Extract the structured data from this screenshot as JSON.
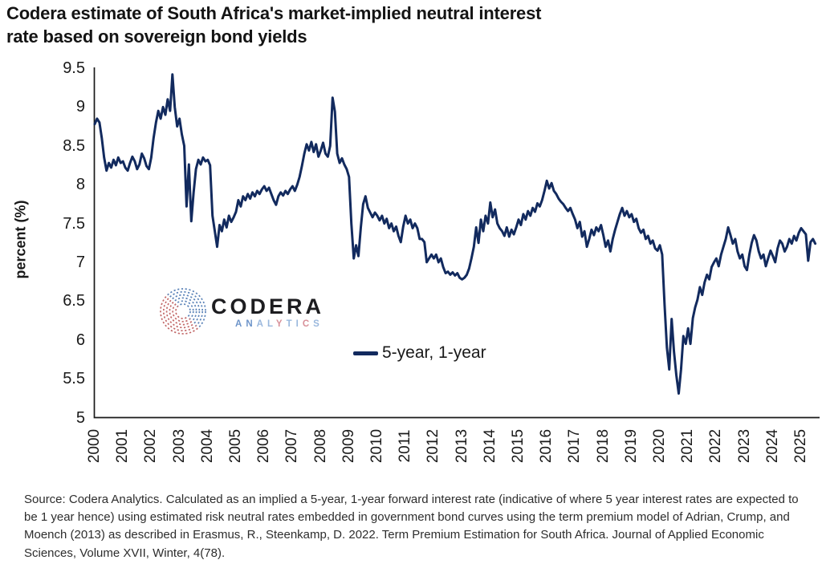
{
  "header": {
    "title_line1": "Codera estimate of South Africa's market-implied neutral interest",
    "title_line2": "rate based on sovereign bond yields"
  },
  "logo": {
    "name": "CODERA",
    "subtitle_letters": [
      {
        "ch": "A",
        "color": "#6d94c9"
      },
      {
        "ch": "N",
        "color": "#6d94c9"
      },
      {
        "ch": "A",
        "color": "#9ab8dd"
      },
      {
        "ch": "L",
        "color": "#9ab8dd"
      },
      {
        "ch": "Y",
        "color": "#d88f98"
      },
      {
        "ch": "T",
        "color": "#9ab8dd"
      },
      {
        "ch": "I",
        "color": "#9ab8dd"
      },
      {
        "ch": "C",
        "color": "#d88f98"
      },
      {
        "ch": "S",
        "color": "#9ab8dd"
      }
    ],
    "mark_color_top": "#5b83b8",
    "mark_color_bottom": "#c26868"
  },
  "chart_data": {
    "type": "line",
    "title": "Codera estimate of South Africa's market-implied neutral interest rate based on sovereign bond yields",
    "xlabel": "",
    "ylabel": "percent (%)",
    "ylim": [
      5,
      9.5
    ],
    "grid": false,
    "legend_position": "inside-center-bottom",
    "y_ticks": [
      5,
      5.5,
      6,
      6.5,
      7,
      7.5,
      8,
      8.5,
      9,
      9.5
    ],
    "y_tick_labels": [
      "5",
      "5.5",
      "6",
      "6.5",
      "7",
      "7.5",
      "8",
      "8.5",
      "9",
      "9.5"
    ],
    "x_ticks": [
      "2000",
      "2001",
      "2002",
      "2003",
      "2004",
      "2005",
      "2006",
      "2007",
      "2008",
      "2009",
      "2010",
      "2011",
      "2012",
      "2013",
      "2014",
      "2015",
      "2016",
      "2017",
      "2018",
      "2019",
      "2020",
      "2021",
      "2022",
      "2023",
      "2024",
      "2025"
    ],
    "series": [
      {
        "name": "5-year, 1-year",
        "color": "#122a5e",
        "start_year": 2000,
        "frequency": "monthly",
        "values": [
          8.78,
          8.85,
          8.8,
          8.6,
          8.35,
          8.18,
          8.28,
          8.22,
          8.32,
          8.25,
          8.35,
          8.28,
          8.3,
          8.22,
          8.18,
          8.28,
          8.36,
          8.3,
          8.2,
          8.26,
          8.4,
          8.34,
          8.24,
          8.2,
          8.35,
          8.6,
          8.8,
          8.95,
          8.85,
          9.0,
          8.9,
          9.1,
          8.95,
          9.42,
          9.0,
          8.75,
          8.85,
          8.65,
          8.5,
          7.72,
          8.26,
          7.53,
          7.9,
          8.2,
          8.32,
          8.26,
          8.35,
          8.3,
          8.32,
          8.25,
          7.6,
          7.4,
          7.2,
          7.48,
          7.4,
          7.55,
          7.45,
          7.6,
          7.52,
          7.58,
          7.65,
          7.8,
          7.72,
          7.85,
          7.8,
          7.88,
          7.82,
          7.9,
          7.85,
          7.92,
          7.88,
          7.94,
          7.98,
          7.92,
          7.96,
          7.88,
          7.8,
          7.74,
          7.85,
          7.9,
          7.86,
          7.92,
          7.88,
          7.94,
          7.98,
          7.92,
          8.0,
          8.1,
          8.24,
          8.4,
          8.52,
          8.44,
          8.55,
          8.42,
          8.52,
          8.36,
          8.44,
          8.54,
          8.4,
          8.36,
          8.5,
          9.12,
          8.94,
          8.4,
          8.28,
          8.34,
          8.26,
          8.2,
          8.1,
          7.5,
          7.05,
          7.22,
          7.08,
          7.45,
          7.75,
          7.85,
          7.7,
          7.64,
          7.58,
          7.64,
          7.6,
          7.54,
          7.6,
          7.5,
          7.56,
          7.44,
          7.5,
          7.4,
          7.46,
          7.34,
          7.26,
          7.46,
          7.6,
          7.5,
          7.55,
          7.44,
          7.5,
          7.44,
          7.3,
          7.3,
          7.26,
          7.0,
          7.05,
          7.1,
          7.05,
          7.1,
          7.0,
          7.05,
          6.94,
          6.86,
          6.88,
          6.84,
          6.87,
          6.83,
          6.86,
          6.8,
          6.78,
          6.8,
          6.84,
          6.92,
          7.05,
          7.2,
          7.45,
          7.25,
          7.55,
          7.4,
          7.6,
          7.5,
          7.77,
          7.58,
          7.68,
          7.5,
          7.44,
          7.4,
          7.34,
          7.45,
          7.33,
          7.42,
          7.36,
          7.45,
          7.55,
          7.48,
          7.62,
          7.55,
          7.66,
          7.6,
          7.7,
          7.65,
          7.76,
          7.72,
          7.8,
          7.92,
          8.05,
          7.95,
          8.02,
          7.92,
          7.88,
          7.82,
          7.78,
          7.75,
          7.7,
          7.66,
          7.7,
          7.62,
          7.55,
          7.44,
          7.52,
          7.33,
          7.4,
          7.2,
          7.3,
          7.42,
          7.35,
          7.45,
          7.4,
          7.48,
          7.35,
          7.2,
          7.28,
          7.14,
          7.3,
          7.42,
          7.52,
          7.62,
          7.7,
          7.6,
          7.66,
          7.58,
          7.62,
          7.52,
          7.56,
          7.44,
          7.38,
          7.42,
          7.3,
          7.34,
          7.24,
          7.28,
          7.18,
          7.15,
          7.22,
          7.1,
          6.45,
          5.9,
          5.62,
          6.27,
          5.85,
          5.55,
          5.31,
          5.62,
          6.05,
          5.95,
          6.15,
          5.95,
          6.28,
          6.42,
          6.52,
          6.68,
          6.58,
          6.74,
          6.84,
          6.78,
          6.94,
          7.0,
          7.05,
          6.95,
          7.1,
          7.2,
          7.3,
          7.45,
          7.35,
          7.24,
          7.3,
          7.14,
          7.05,
          7.1,
          6.95,
          6.9,
          7.1,
          7.25,
          7.35,
          7.28,
          7.14,
          7.05,
          7.1,
          6.95,
          7.05,
          7.15,
          7.08,
          7.0,
          7.18,
          7.28,
          7.24,
          7.14,
          7.2,
          7.3,
          7.24,
          7.34,
          7.28,
          7.38,
          7.44,
          7.4,
          7.36,
          7.02,
          7.26,
          7.3,
          7.24
        ]
      }
    ],
    "axis_color": "#1a1a1a"
  },
  "legend": {
    "label": "5-year, 1-year"
  },
  "footer": {
    "source_text": "Source: Codera Analytics. Calculated as an implied a 5-year, 1-year forward interest rate (indicative of where 5 year interest rates are expected to be 1 year hence) using estimated risk neutral rates embedded in government bond curves using the term premium model of Adrian, Crump, and Moench (2013) as described in Erasmus, R., Steenkamp, D. 2022. Term Premium Estimation for South Africa. Journal of Applied Economic Sciences, Volume XVII, Winter, 4(78)."
  }
}
